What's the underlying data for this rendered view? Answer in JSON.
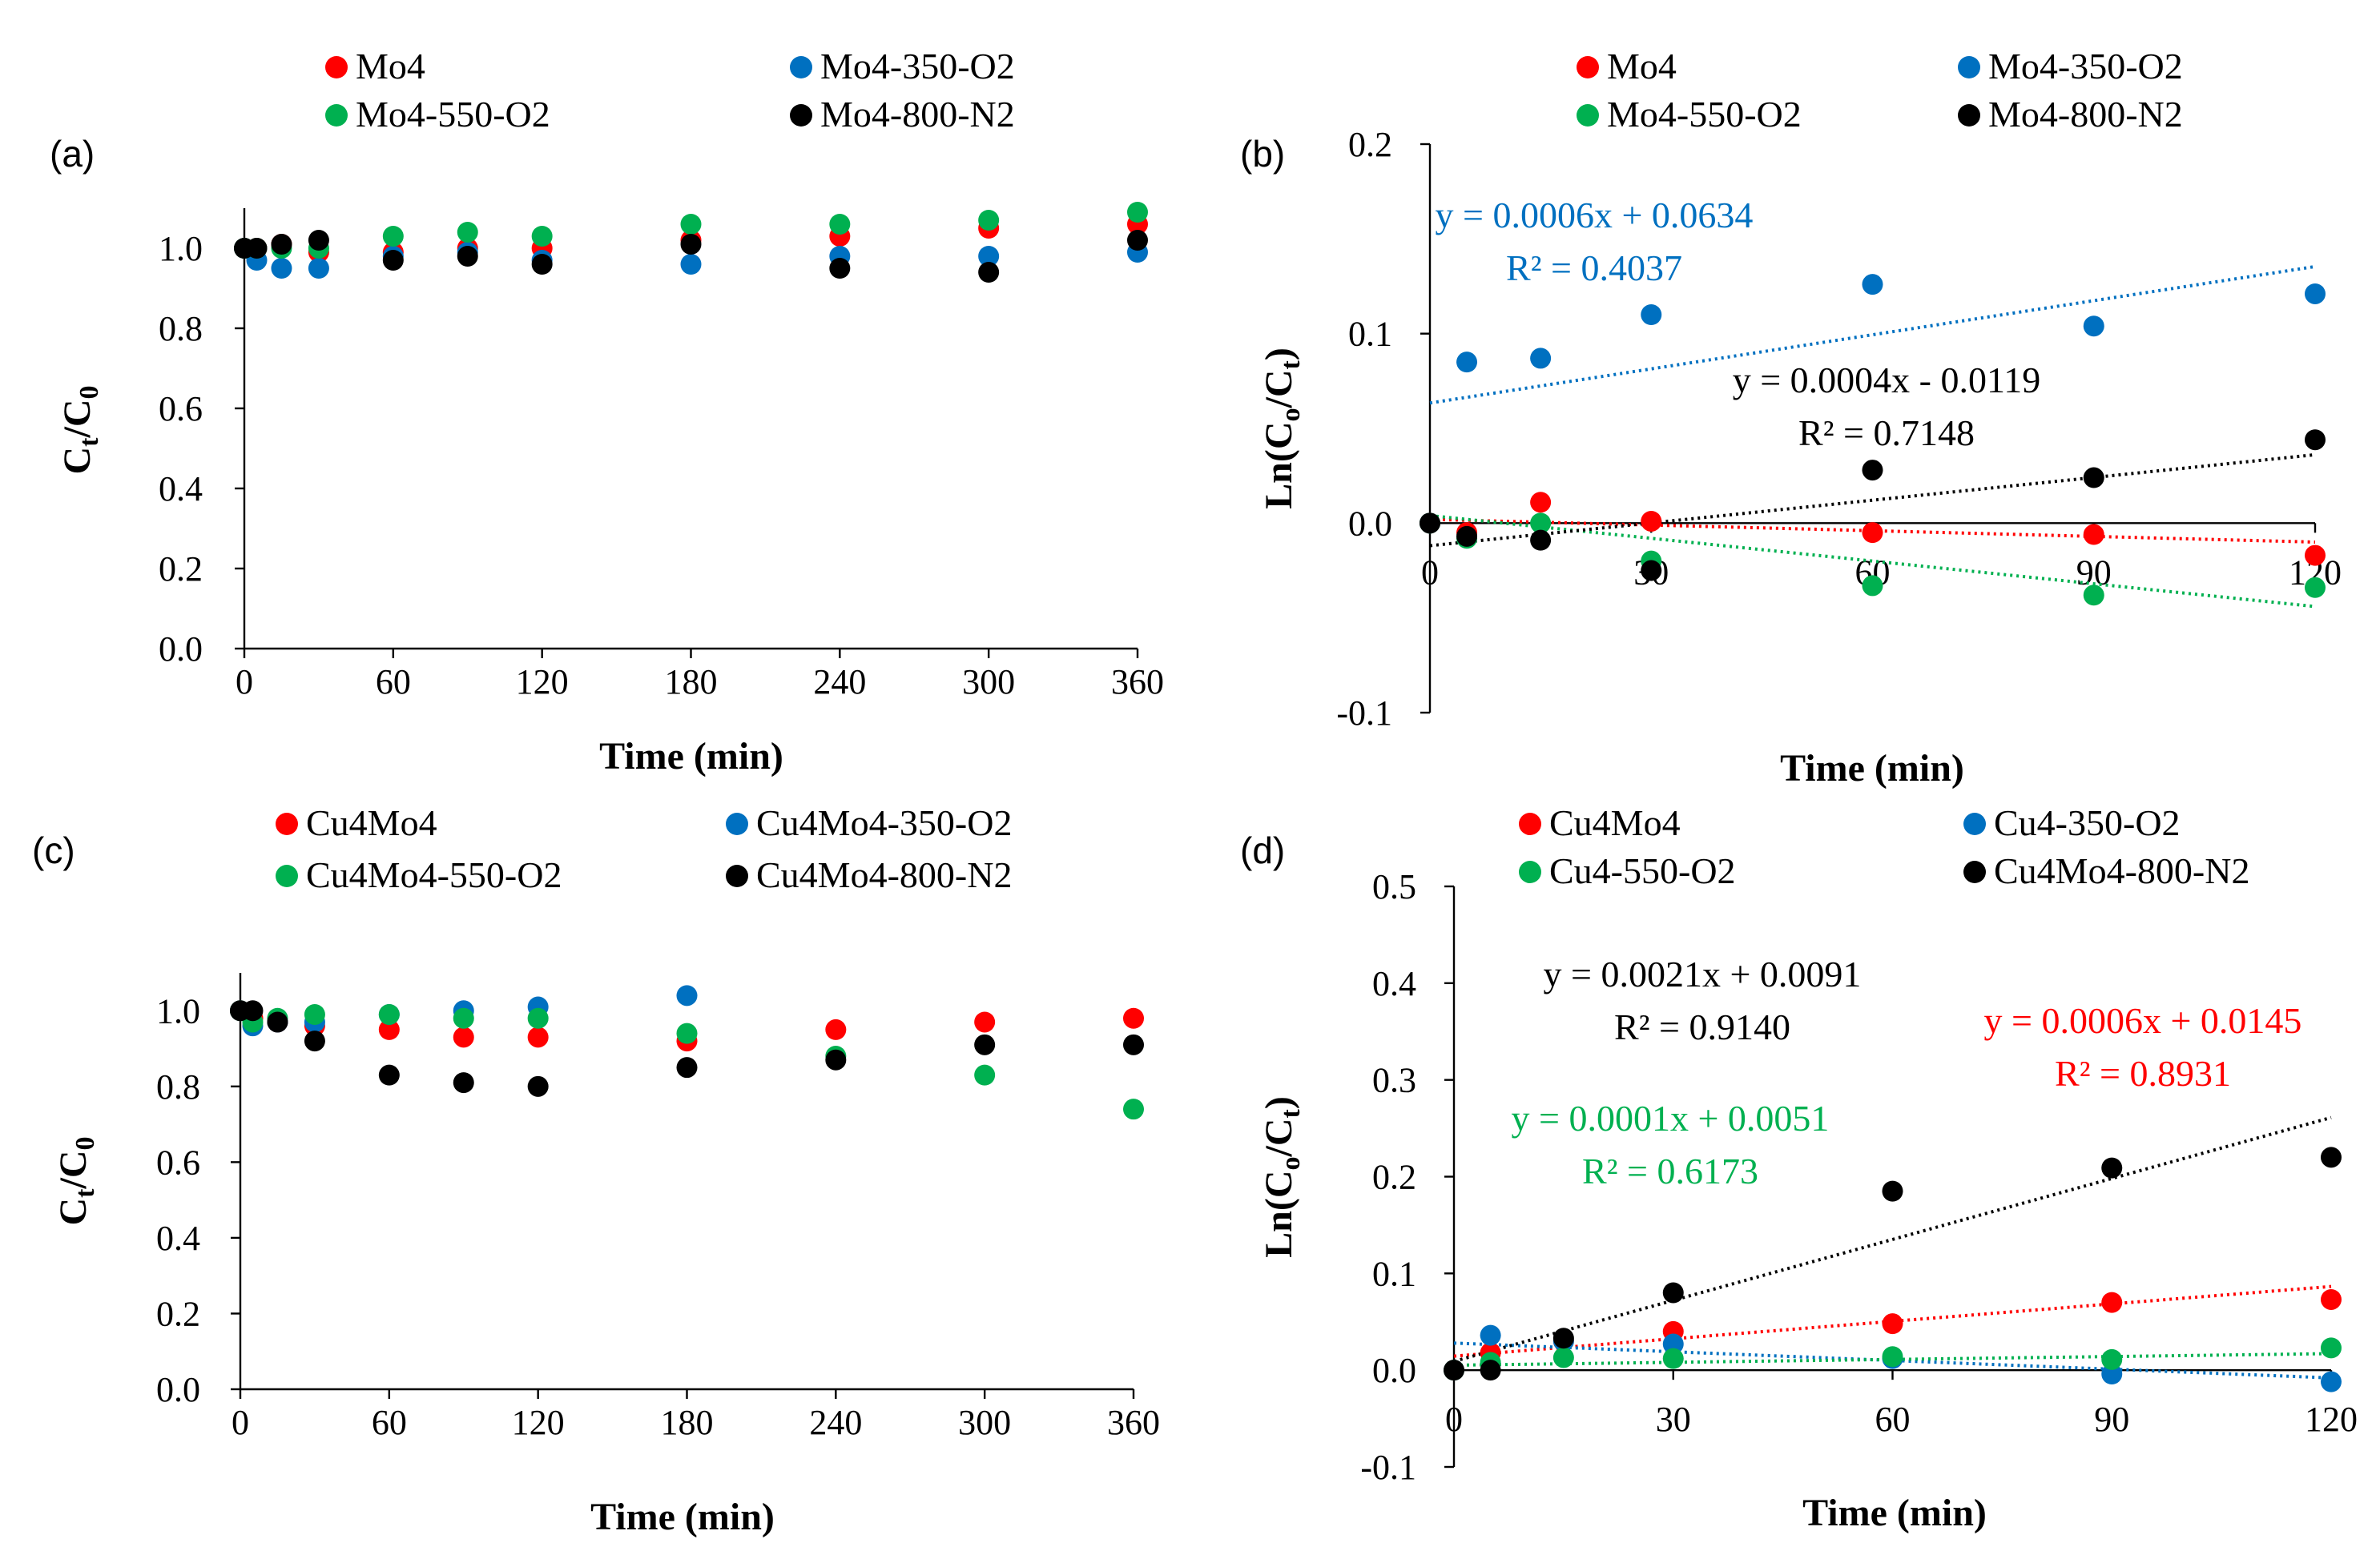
{
  "colors": {
    "red": "#ff0000",
    "blue": "#0070c0",
    "green": "#00b050",
    "black": "#000000"
  },
  "chart_data": [
    {
      "panel": "(a)",
      "type": "scatter",
      "xlabel": "Time (min)",
      "ylabel": "Ct/C0",
      "ylabel_main": "C",
      "ylabel_sub1": "t",
      "ylabel_mid": "/C",
      "ylabel_sub2": "0",
      "xlim": [
        0,
        360
      ],
      "ylim": [
        0,
        1.1
      ],
      "xticks": [
        0,
        60,
        120,
        180,
        240,
        300,
        360
      ],
      "xtick_labels": [
        "0",
        "60",
        "120",
        "180",
        "240",
        "300",
        "360"
      ],
      "yticks": [
        0,
        0.2,
        0.4,
        0.6,
        0.8,
        1.0
      ],
      "ytick_labels": [
        "0.0",
        "0.2",
        "0.4",
        "0.6",
        "0.8",
        "1.0"
      ],
      "legend": [
        "Mo4",
        "Mo4-350-O2",
        "Mo4-550-O2",
        "Mo4-800-N2"
      ],
      "series": [
        {
          "name": "Mo4",
          "color": "red",
          "x": [
            0,
            5,
            15,
            30,
            60,
            90,
            120,
            180,
            240,
            300,
            360
          ],
          "y": [
            1.0,
            1.0,
            1.01,
            0.99,
            0.99,
            1.0,
            1.0,
            1.02,
            1.03,
            1.05,
            1.06
          ]
        },
        {
          "name": "Mo4-350-O2",
          "color": "blue",
          "x": [
            0,
            5,
            15,
            30,
            60,
            90,
            120,
            180,
            240,
            300,
            360
          ],
          "y": [
            1.0,
            0.97,
            0.95,
            0.95,
            0.98,
            0.99,
            0.97,
            0.96,
            0.98,
            0.98,
            0.99
          ]
        },
        {
          "name": "Mo4-550-O2",
          "color": "green",
          "x": [
            0,
            5,
            15,
            30,
            60,
            90,
            120,
            180,
            240,
            300,
            360
          ],
          "y": [
            1.0,
            1.0,
            1.0,
            1.0,
            1.03,
            1.04,
            1.03,
            1.06,
            1.06,
            1.07,
            1.09
          ]
        },
        {
          "name": "Mo4-800-N2",
          "color": "black",
          "x": [
            0,
            5,
            15,
            30,
            60,
            90,
            120,
            180,
            240,
            300,
            360
          ],
          "y": [
            1.0,
            1.0,
            1.01,
            1.02,
            0.97,
            0.98,
            0.96,
            1.01,
            0.95,
            0.94,
            1.02
          ]
        }
      ]
    },
    {
      "panel": "(b)",
      "type": "scatter",
      "xlabel": "Time (min)",
      "ylabel": "Ln(Co/Ct)",
      "ylabel_main": "Ln(C",
      "ylabel_sub1": "o",
      "ylabel_mid": "/C",
      "ylabel_sub2": "t",
      "ylabel_end": ")",
      "xlim": [
        0,
        120
      ],
      "ylim": [
        -0.1,
        0.2
      ],
      "xticks": [
        0,
        30,
        60,
        90,
        120
      ],
      "xtick_labels": [
        "0",
        "30",
        "60",
        "90",
        "120"
      ],
      "yticks": [
        -0.1,
        0.0,
        0.1,
        0.2
      ],
      "ytick_labels": [
        "-0.1",
        "0.0",
        "0.1",
        "0.2"
      ],
      "legend": [
        "Mo4",
        "Mo4-350-O2",
        "Mo4-550-O2",
        "Mo4-800-N2"
      ],
      "series": [
        {
          "name": "Mo4",
          "color": "red",
          "x": [
            0,
            5,
            15,
            30,
            60,
            90,
            120
          ],
          "y": [
            0.0,
            -0.005,
            0.011,
            0.001,
            -0.005,
            -0.006,
            -0.017
          ],
          "trend": {
            "slope": -0.0001,
            "intercept": 0.002
          }
        },
        {
          "name": "Mo4-350-O2",
          "color": "blue",
          "x": [
            0,
            5,
            15,
            30,
            60,
            90,
            120
          ],
          "y": [
            0.0,
            0.085,
            0.087,
            0.11,
            0.126,
            0.104,
            0.121
          ],
          "trend": {
            "slope": 0.0006,
            "intercept": 0.0634
          }
        },
        {
          "name": "Mo4-550-O2",
          "color": "green",
          "x": [
            0,
            5,
            15,
            30,
            60,
            90,
            120
          ],
          "y": [
            0.0,
            -0.008,
            0.0,
            -0.02,
            -0.033,
            -0.038,
            -0.034
          ],
          "trend": {
            "slope": -0.0004,
            "intercept": 0.004
          }
        },
        {
          "name": "Mo4-800-N2",
          "color": "black",
          "x": [
            0,
            5,
            15,
            30,
            60,
            90,
            120
          ],
          "y": [
            0.0,
            -0.007,
            -0.009,
            -0.025,
            0.028,
            0.024,
            0.044
          ],
          "trend": {
            "slope": 0.0004,
            "intercept": -0.0119
          }
        }
      ],
      "annotations": [
        {
          "color": "blue",
          "line1": "y = 0.0006x + 0.0634",
          "line2": "R² = 0.4037"
        },
        {
          "color": "black",
          "line1": "y = 0.0004x - 0.0119",
          "line2": "R² = 0.7148"
        }
      ]
    },
    {
      "panel": "(c)",
      "type": "scatter",
      "xlabel": "Time (min)",
      "ylabel": "Ct/C0",
      "ylabel_main": "C",
      "ylabel_sub1": "t",
      "ylabel_mid": "/C",
      "ylabel_sub2": "0",
      "xlim": [
        0,
        360
      ],
      "ylim": [
        0,
        1.1
      ],
      "xticks": [
        0,
        60,
        120,
        180,
        240,
        300,
        360
      ],
      "xtick_labels": [
        "0",
        "60",
        "120",
        "180",
        "240",
        "300",
        "360"
      ],
      "yticks": [
        0,
        0.2,
        0.4,
        0.6,
        0.8,
        1.0
      ],
      "ytick_labels": [
        "0.0",
        "0.2",
        "0.4",
        "0.6",
        "0.8",
        "1.0"
      ],
      "legend": [
        "Cu4Mo4",
        "Cu4Mo4-350-O2",
        "Cu4Mo4-550-O2",
        "Cu4Mo4-800-N2"
      ],
      "series": [
        {
          "name": "Cu4Mo4",
          "color": "red",
          "x": [
            0,
            5,
            15,
            30,
            60,
            90,
            120,
            180,
            240,
            300,
            360
          ],
          "y": [
            1.0,
            0.98,
            0.97,
            0.96,
            0.95,
            0.93,
            0.93,
            0.92,
            0.95,
            0.97,
            0.98
          ]
        },
        {
          "name": "Cu4Mo4-350-O2",
          "color": "blue",
          "x": [
            0,
            5,
            15,
            30,
            60,
            90,
            120,
            180
          ],
          "y": [
            1.0,
            0.96,
            0.97,
            0.97,
            0.99,
            1.0,
            1.01,
            1.04
          ]
        },
        {
          "name": "Cu4Mo4-550-O2",
          "color": "green",
          "x": [
            0,
            5,
            15,
            30,
            60,
            90,
            120,
            180,
            240,
            300,
            360
          ],
          "y": [
            1.0,
            0.97,
            0.98,
            0.99,
            0.99,
            0.98,
            0.98,
            0.94,
            0.88,
            0.83,
            0.74
          ]
        },
        {
          "name": "Cu4Mo4-800-N2",
          "color": "black",
          "x": [
            0,
            5,
            15,
            30,
            60,
            90,
            120,
            180,
            240,
            300,
            360
          ],
          "y": [
            1.0,
            1.0,
            0.97,
            0.92,
            0.83,
            0.81,
            0.8,
            0.85,
            0.87,
            0.91,
            0.91
          ]
        }
      ]
    },
    {
      "panel": "(d)",
      "type": "scatter",
      "xlabel": "Time (min)",
      "ylabel": "Ln(Co/Ct)",
      "ylabel_main": "Ln(C",
      "ylabel_sub1": "o",
      "ylabel_mid": "/C",
      "ylabel_sub2": "t",
      "ylabel_end": ")",
      "xlim": [
        0,
        120
      ],
      "ylim": [
        -0.1,
        0.5
      ],
      "xticks": [
        0,
        30,
        60,
        90,
        120
      ],
      "xtick_labels": [
        "0",
        "30",
        "60",
        "90",
        "120"
      ],
      "yticks": [
        -0.1,
        0.0,
        0.1,
        0.2,
        0.3,
        0.4,
        0.5
      ],
      "ytick_labels": [
        "-0.1",
        "0.0",
        "0.1",
        "0.2",
        "0.3",
        "0.4",
        "0.5"
      ],
      "legend": [
        "Cu4Mo4",
        "Cu4-350-O2",
        "Cu4-550-O2",
        "Cu4Mo4-800-N2"
      ],
      "series": [
        {
          "name": "Cu4Mo4",
          "color": "red",
          "x": [
            0,
            5,
            15,
            30,
            60,
            90,
            120
          ],
          "y": [
            0.0,
            0.018,
            0.03,
            0.04,
            0.048,
            0.07,
            0.073
          ],
          "trend": {
            "slope": 0.0006,
            "intercept": 0.0145
          }
        },
        {
          "name": "Cu4-350-O2",
          "color": "blue",
          "x": [
            0,
            5,
            15,
            30,
            60,
            90,
            120
          ],
          "y": [
            0.0,
            0.036,
            0.03,
            0.027,
            0.012,
            -0.004,
            -0.012
          ],
          "trend": {
            "slope": -0.0003,
            "intercept": 0.028
          }
        },
        {
          "name": "Cu4-550-O2",
          "color": "green",
          "x": [
            0,
            5,
            15,
            30,
            60,
            90,
            120
          ],
          "y": [
            0.0,
            0.008,
            0.013,
            0.012,
            0.014,
            0.011,
            0.023
          ],
          "trend": {
            "slope": 0.0001,
            "intercept": 0.0051
          }
        },
        {
          "name": "Cu4Mo4-800-N2",
          "color": "black",
          "x": [
            0,
            5,
            15,
            30,
            60,
            90,
            120
          ],
          "y": [
            0.0,
            0.0,
            0.033,
            0.08,
            0.185,
            0.209,
            0.22
          ],
          "trend": {
            "slope": 0.0021,
            "intercept": 0.0091
          }
        }
      ],
      "annotations": [
        {
          "color": "black",
          "line1": "y = 0.0021x + 0.0091",
          "line2": "R² = 0.9140"
        },
        {
          "color": "red",
          "line1": "y = 0.0006x + 0.0145",
          "line2": "R² = 0.8931"
        },
        {
          "color": "green",
          "line1": "y = 0.0001x + 0.0051",
          "line2": "R² = 0.6173"
        }
      ]
    }
  ]
}
